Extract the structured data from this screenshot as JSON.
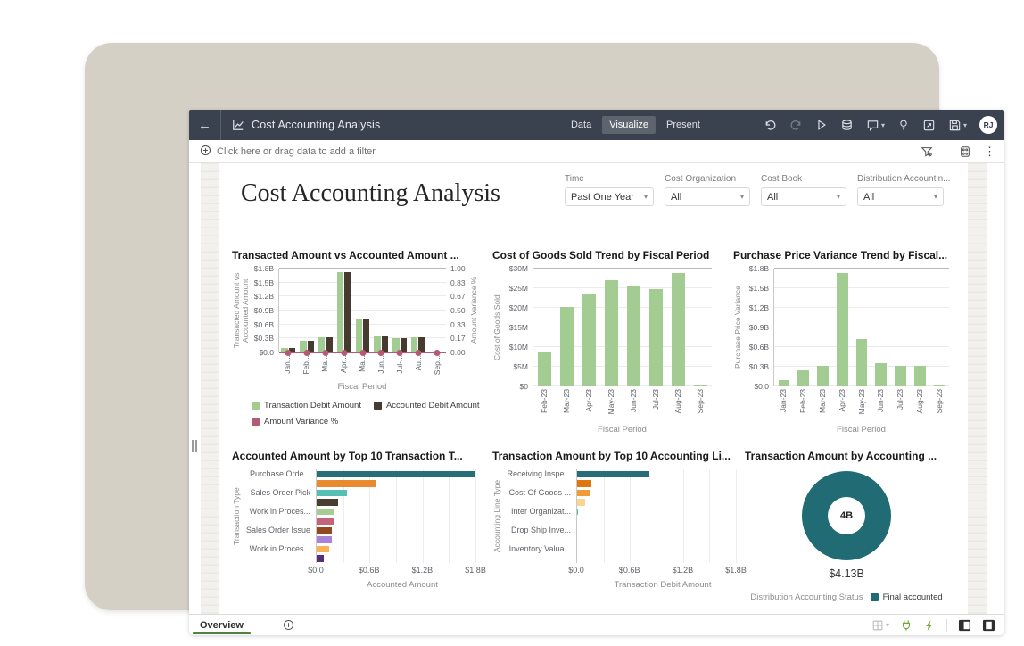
{
  "window": {
    "title": "Cost Accounting Analysis",
    "tabs": [
      {
        "label": "Data",
        "active": false
      },
      {
        "label": "Visualize",
        "active": true
      },
      {
        "label": "Present",
        "active": false
      }
    ],
    "toolbar_icons": [
      "undo-icon",
      "redo-icon",
      "run-icon",
      "refresh-data-icon",
      "comment-icon",
      "insights-icon",
      "export-icon",
      "save-icon"
    ],
    "avatar_initials": "RJ"
  },
  "filter_bar": {
    "prompt": "Click here or drag data to add a filter",
    "icons": [
      "filter-funnel-icon",
      "limit-values-icon",
      "more-options-icon"
    ]
  },
  "canvas": {
    "title": "Cost Accounting Analysis",
    "filters": [
      {
        "label": "Time",
        "value": "Past One Year"
      },
      {
        "label": "Cost Organization",
        "value": "All"
      },
      {
        "label": "Cost Book",
        "value": "All"
      },
      {
        "label": "Distribution Accountin...",
        "value": "All"
      }
    ]
  },
  "bottom_bar": {
    "tab": "Overview",
    "icons": [
      "canvas-layout-icon",
      "data-connection-icon",
      "auto-refresh-icon",
      "panel-left-icon",
      "panel-right-icon"
    ]
  },
  "colors": {
    "header_bg": "#3a4250",
    "accent_green": "#55813f",
    "bar_green": "#a3cc92",
    "bar_brown": "#473a31",
    "variance_pink": "#b55a70",
    "teal": "#216b75",
    "frame_beige": "#d4d0c6"
  },
  "chart_data": [
    {
      "type": "bar",
      "subtype": "dual-axis-grouped-bar-line",
      "title": "Transacted Amount vs Accounted Amount ...",
      "categories": [
        "Jan-23",
        "Feb-23",
        "Mar-23",
        "Apr-23",
        "May-23",
        "Jun-23",
        "Jul-23",
        "Aug-23",
        "Sep-23"
      ],
      "x_tick_labels": [
        "Jan...",
        "Feb...",
        "Ma...",
        "Apr...",
        "Ma...",
        "Jun...",
        "Jul-...",
        "Au...",
        "Sep..."
      ],
      "series": [
        {
          "name": "Transaction Debit Amount",
          "kind": "bar",
          "color": "#a3cc92",
          "values": [
            0.09,
            0.24,
            0.32,
            1.73,
            0.72,
            0.35,
            0.31,
            0.32,
            0.01
          ]
        },
        {
          "name": "Accounted Debit Amount",
          "kind": "bar",
          "color": "#473a31",
          "values": [
            0.09,
            0.24,
            0.32,
            1.72,
            0.71,
            0.35,
            0.3,
            0.32,
            0.01
          ]
        },
        {
          "name": "Amount Variance %",
          "kind": "line",
          "axis": "right",
          "color": "#b55a70",
          "values": [
            0,
            0,
            0,
            0,
            0,
            0,
            0,
            0,
            0
          ]
        }
      ],
      "ylabel": "Transacted Amount vs Accounted Amount",
      "y_ticks": [
        "$1.8B",
        "$1.5B",
        "$1.2B",
        "$0.9B",
        "$0.6B",
        "$0.3B",
        "$0.0"
      ],
      "ylim": [
        0,
        1.8
      ],
      "y2label": "Amount Variance %",
      "y2_ticks": [
        "1.00",
        "0.83",
        "0.67",
        "0.50",
        "0.33",
        "0.17",
        "0.00"
      ],
      "y2lim": [
        0,
        1
      ],
      "xlabel": "Fiscal Period",
      "legend_position": "bottom"
    },
    {
      "type": "bar",
      "title": "Cost of Goods Sold Trend by Fiscal Period",
      "categories": [
        "Feb-23",
        "Mar-23",
        "Apr-23",
        "May-23",
        "Jun-23",
        "Jul-23",
        "Aug-23",
        "Sep-23"
      ],
      "values": [
        8.7,
        20.2,
        23.4,
        27.1,
        25.4,
        24.8,
        28.8,
        0.4
      ],
      "color": "#a3cc92",
      "ylabel": "Cost of Goods Sold",
      "y_ticks": [
        "$30M",
        "$25M",
        "$20M",
        "$15M",
        "$10M",
        "$5M",
        "$0"
      ],
      "ylim": [
        0,
        30
      ],
      "xlabel": "Fiscal Period"
    },
    {
      "type": "bar",
      "title": "Purchase Price Variance Trend by Fiscal...",
      "categories": [
        "Jan-23",
        "Feb-23",
        "Mar-23",
        "Apr-23",
        "May-23",
        "Jun-23",
        "Jul-23",
        "Aug-23",
        "Sep-23"
      ],
      "values": [
        0.09,
        0.24,
        0.32,
        1.73,
        0.72,
        0.35,
        0.31,
        0.32,
        0.005
      ],
      "color": "#a3cc92",
      "ylabel": "Purchase Price Variance",
      "y_ticks": [
        "$1.8B",
        "$1.5B",
        "$1.2B",
        "$0.9B",
        "$0.6B",
        "$0.3B",
        "$0.0"
      ],
      "ylim": [
        0,
        1.8
      ],
      "xlabel": "Fiscal Period"
    },
    {
      "type": "bar",
      "subtype": "horizontal",
      "title": "Accounted Amount by Top 10 Transaction T...",
      "ylabel": "Transaction Type",
      "xlabel": "Accounted Amount",
      "x_ticks": [
        "$0.0",
        "$0.6B",
        "$1.2B",
        "$1.8B"
      ],
      "x_tick_values": [
        0,
        0.6,
        1.2,
        1.8
      ],
      "xlim": [
        0,
        1.95
      ],
      "bars": [
        {
          "label": "Purchase Orde...",
          "value": 1.8,
          "color": "#266f79"
        },
        {
          "label": "",
          "value": 0.68,
          "color": "#ea8a2f"
        },
        {
          "label": "Sales Order Pick",
          "value": 0.34,
          "color": "#56c0b7"
        },
        {
          "label": "",
          "value": 0.24,
          "color": "#4a3c31"
        },
        {
          "label": "Work in Proces...",
          "value": 0.2,
          "color": "#a5cd90"
        },
        {
          "label": "",
          "value": 0.2,
          "color": "#c4647a"
        },
        {
          "label": "Sales Order Issue",
          "value": 0.17,
          "color": "#91491d"
        },
        {
          "label": "",
          "value": 0.17,
          "color": "#aa82d6"
        },
        {
          "label": "Work in Proces...",
          "value": 0.14,
          "color": "#fbb257"
        },
        {
          "label": "",
          "value": 0.08,
          "color": "#55307a"
        }
      ]
    },
    {
      "type": "bar",
      "subtype": "horizontal",
      "title": "Transaction Amount by Top 10 Accounting Li...",
      "ylabel": "Accounting Line Type",
      "xlabel": "Transaction Debit Amount",
      "x_ticks": [
        "$0.0",
        "$0.6B",
        "$1.2B",
        "$1.8B"
      ],
      "x_tick_values": [
        0,
        0.6,
        1.2,
        1.8
      ],
      "xlim": [
        0,
        1.95
      ],
      "bars": [
        {
          "label": "Receiving Inspe...",
          "value": 0.82,
          "color": "#266f79"
        },
        {
          "label": "",
          "value": 0.16,
          "color": "#e0760e"
        },
        {
          "label": "Cost Of Goods ...",
          "value": 0.15,
          "color": "#f09c36"
        },
        {
          "label": "",
          "value": 0.09,
          "color": "#fbd492"
        },
        {
          "label": "Inter Organizat...",
          "value": 0.015,
          "color": "#56c0b7"
        },
        {
          "label": "",
          "value": 0,
          "color": "#cccccc"
        },
        {
          "label": "Drop Ship Inve...",
          "value": 0,
          "color": "#cccccc"
        },
        {
          "label": "",
          "value": 0,
          "color": "#cccccc"
        },
        {
          "label": "Inventory Valua...",
          "value": 0,
          "color": "#cccccc"
        },
        {
          "label": "",
          "value": 0,
          "color": "#cccccc"
        }
      ]
    },
    {
      "type": "pie",
      "subtype": "donut",
      "title": "Transaction Amount by Accounting ...",
      "center_label": "4B",
      "total_label": "$4.13B",
      "legend_title": "Distribution Accounting Status",
      "slices": [
        {
          "label": "Final accounted",
          "value": 4.13,
          "color": "#216b75",
          "share": 1.0
        }
      ]
    }
  ]
}
